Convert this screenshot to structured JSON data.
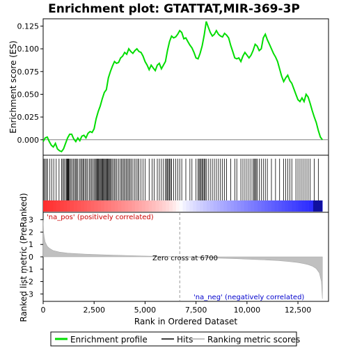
{
  "chart_data": {
    "type": "line",
    "title": "Enrichment plot: GTATTAT,MIR-369-3P",
    "xlabel": "Rank in Ordered Dataset",
    "es_panel": {
      "ylabel": "Enrichment score (ES)",
      "ylim": [
        -0.017,
        0.133
      ],
      "yticks": [
        "0.000",
        "0.025",
        "0.050",
        "0.075",
        "0.100",
        "0.125"
      ],
      "ytick_values": [
        0.0,
        0.025,
        0.05,
        0.075,
        0.1,
        0.125
      ],
      "series": [
        {
          "name": "Enrichment profile",
          "color": "#00dd00",
          "x": [
            0,
            100,
            200,
            300,
            400,
            500,
            600,
            700,
            800,
            900,
            1000,
            1100,
            1200,
            1300,
            1400,
            1500,
            1600,
            1700,
            1800,
            1900,
            2000,
            2100,
            2200,
            2300,
            2400,
            2500,
            2600,
            2700,
            2800,
            2900,
            3000,
            3100,
            3200,
            3300,
            3400,
            3500,
            3600,
            3700,
            3800,
            3900,
            4000,
            4100,
            4200,
            4300,
            4400,
            4500,
            4600,
            4700,
            4800,
            4900,
            5000,
            5100,
            5200,
            5300,
            5400,
            5500,
            5600,
            5700,
            5800,
            5900,
            6000,
            6100,
            6200,
            6300,
            6400,
            6500,
            6600,
            6700,
            6800,
            6900,
            7000,
            7100,
            7200,
            7300,
            7400,
            7500,
            7600,
            7700,
            7800,
            7900,
            8000,
            8100,
            8200,
            8300,
            8400,
            8500,
            8600,
            8700,
            8800,
            8900,
            9000,
            9100,
            9200,
            9300,
            9400,
            9500,
            9600,
            9700,
            9800,
            9900,
            10000,
            10100,
            10200,
            10300,
            10400,
            10500,
            10600,
            10700,
            10800,
            10900,
            11000,
            11100,
            11200,
            11300,
            11400,
            11500,
            11600,
            11700,
            11800,
            11900,
            12000,
            12100,
            12200,
            12300,
            12400,
            12500,
            12600,
            12700,
            12800,
            12900,
            13000,
            13100,
            13200,
            13300,
            13400,
            13500,
            13600,
            13700
          ],
          "y": [
            -0.002,
            0.002,
            0.003,
            -0.002,
            -0.006,
            -0.008,
            -0.004,
            -0.01,
            -0.012,
            -0.013,
            -0.01,
            -0.004,
            0.002,
            0.006,
            0.006,
            0.001,
            -0.002,
            0.002,
            -0.001,
            0.004,
            0.005,
            0.002,
            0.007,
            0.009,
            0.008,
            0.012,
            0.023,
            0.031,
            0.037,
            0.045,
            0.052,
            0.055,
            0.068,
            0.075,
            0.081,
            0.086,
            0.084,
            0.085,
            0.09,
            0.092,
            0.096,
            0.094,
            0.1,
            0.097,
            0.095,
            0.098,
            0.1,
            0.097,
            0.096,
            0.092,
            0.086,
            0.082,
            0.077,
            0.082,
            0.079,
            0.076,
            0.082,
            0.084,
            0.078,
            0.082,
            0.086,
            0.098,
            0.108,
            0.114,
            0.112,
            0.113,
            0.116,
            0.12,
            0.118,
            0.111,
            0.112,
            0.108,
            0.104,
            0.101,
            0.096,
            0.09,
            0.089,
            0.095,
            0.103,
            0.115,
            0.13,
            0.124,
            0.118,
            0.114,
            0.116,
            0.12,
            0.116,
            0.114,
            0.113,
            0.117,
            0.115,
            0.112,
            0.104,
            0.097,
            0.09,
            0.089,
            0.09,
            0.086,
            0.092,
            0.096,
            0.093,
            0.09,
            0.093,
            0.098,
            0.105,
            0.103,
            0.098,
            0.1,
            0.112,
            0.116,
            0.11,
            0.105,
            0.1,
            0.095,
            0.091,
            0.086,
            0.078,
            0.07,
            0.064,
            0.068,
            0.071,
            0.065,
            0.062,
            0.056,
            0.05,
            0.044,
            0.042,
            0.046,
            0.042,
            0.05,
            0.047,
            0.04,
            0.032,
            0.025,
            0.019,
            0.01,
            0.003,
            0.0
          ]
        }
      ],
      "hits": [
        40,
        100,
        160,
        220,
        330,
        420,
        520,
        640,
        780,
        900,
        960,
        1020,
        1080,
        1140,
        1170,
        1200,
        1230,
        1260,
        1300,
        1360,
        1420,
        1480,
        1540,
        1600,
        1640,
        1700,
        1780,
        1840,
        1900,
        1950,
        2000,
        2060,
        2120,
        2180,
        2260,
        2320,
        2380,
        2440,
        2500,
        2560,
        2600,
        2640,
        2680,
        2720,
        2760,
        2800,
        2840,
        2880,
        2920,
        2960,
        3000,
        3040,
        3080,
        3120,
        3160,
        3200,
        3240,
        3280,
        3320,
        3380,
        3440,
        3500,
        3560,
        3620,
        3700,
        3780,
        3840,
        3900,
        3960,
        4020,
        4080,
        4140,
        4200,
        4260,
        4320,
        4400,
        4480,
        4560,
        4640,
        4700,
        4800,
        4900,
        5000,
        5200,
        5350,
        5450,
        5600,
        5700,
        5800,
        5900,
        6000,
        6050,
        6100,
        6150,
        6200,
        6250,
        6300,
        6400,
        6500,
        6600,
        6700,
        6800,
        7000,
        7200,
        7300,
        7500,
        7600,
        7650,
        7700,
        7750,
        7800,
        7850,
        7900,
        7950,
        8000,
        8100,
        8200,
        8300,
        8400,
        8500,
        8600,
        8700,
        8800,
        8900,
        9000,
        9200,
        9400,
        9500,
        9700,
        9800,
        9900,
        10000,
        10100,
        10200,
        10300,
        10350,
        10400,
        10450,
        10500,
        10600,
        10700,
        10800,
        10900,
        11000,
        11200,
        11400,
        11600,
        11800,
        11900,
        12000,
        12100,
        12200,
        12400,
        12500,
        12600,
        12700,
        12800,
        12900,
        13000,
        13100,
        13300,
        13500
      ],
      "annotations": []
    },
    "rank_panel": {
      "ylabel": "Ranked list metric (PreRanked)",
      "ylim": [
        -3.6,
        3.6
      ],
      "yticks": [
        "3",
        "2",
        "1",
        "0",
        "-1",
        "-2",
        "-3"
      ],
      "ytick_values": [
        3,
        2,
        1,
        0,
        -1,
        -2,
        -3
      ],
      "metric_x": [
        0,
        20,
        50,
        100,
        200,
        300,
        500,
        800,
        1200,
        2000,
        3000,
        4000,
        5000,
        6000,
        6700,
        7500,
        8500,
        9500,
        10500,
        11500,
        12000,
        12500,
        12800,
        13000,
        13200,
        13400,
        13550,
        13650,
        13700
      ],
      "metric_y": [
        3.0,
        2.0,
        1.6,
        1.2,
        0.85,
        0.7,
        0.5,
        0.38,
        0.3,
        0.22,
        0.16,
        0.11,
        0.06,
        0.02,
        0.0,
        -0.05,
        -0.1,
        -0.15,
        -0.22,
        -0.3,
        -0.37,
        -0.46,
        -0.55,
        -0.63,
        -0.75,
        -0.95,
        -1.3,
        -2.0,
        -3.4
      ],
      "pos_label": "'na_pos' (positively correlated)",
      "neg_label": "'na_neg' (negatively correlated)",
      "zero_cross_label": "Zero cross at 6700",
      "zero_cross": 6700
    },
    "xlim": [
      0,
      14000
    ],
    "xticks": [
      "0",
      "2,500",
      "5,000",
      "7,500",
      "10,000",
      "12,500"
    ],
    "xtick_values": [
      0,
      2500,
      5000,
      7500,
      10000,
      12500
    ],
    "legend": {
      "placement": "bottom",
      "entries": [
        "Enrichment profile",
        "Hits",
        "Ranking metric scores"
      ]
    },
    "colors": {
      "profile": "#00dd00",
      "hits": "#000000",
      "metric_fill": "#c0c0c0",
      "pos_label": "#cc0000",
      "neg_label": "#0000cc",
      "zero_line": "#808080"
    }
  }
}
